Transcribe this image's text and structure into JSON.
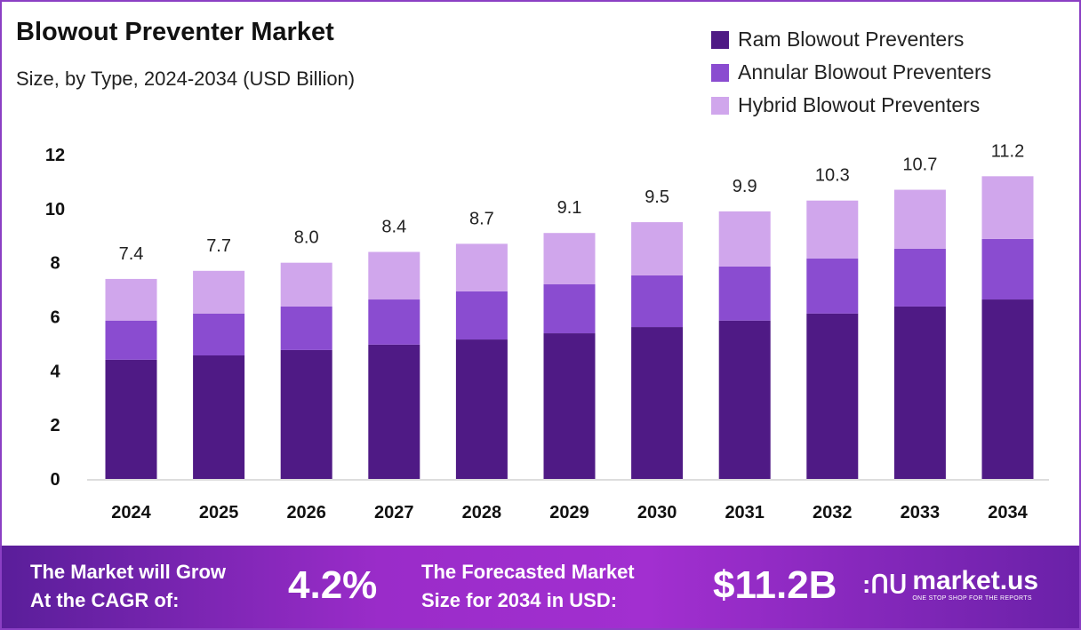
{
  "chart_data": {
    "type": "bar",
    "stacked": true,
    "title": "Blowout Preventer Market",
    "subtitle": "Size, by Type, 2024-2034 (USD Billion)",
    "categories": [
      "2024",
      "2025",
      "2026",
      "2027",
      "2028",
      "2029",
      "2030",
      "2031",
      "2032",
      "2033",
      "2034"
    ],
    "series": [
      {
        "name": "Ram Blowout Preventers",
        "color": "#4f1a85",
        "values": [
          4.41,
          4.57,
          4.77,
          4.97,
          5.16,
          5.39,
          5.62,
          5.86,
          6.12,
          6.38,
          6.64
        ]
      },
      {
        "name": "Annular Blowout Preventers",
        "color": "#8a4cd0",
        "values": [
          1.45,
          1.55,
          1.61,
          1.67,
          1.78,
          1.81,
          1.91,
          2.0,
          2.04,
          2.14,
          2.24
        ]
      },
      {
        "name": "Hybrid Blowout Preventers",
        "color": "#d0a6ec",
        "values": [
          1.54,
          1.58,
          1.62,
          1.76,
          1.76,
          1.9,
          1.97,
          2.04,
          2.14,
          2.18,
          2.32
        ]
      }
    ],
    "totals": [
      "7.4",
      "7.7",
      "8.0",
      "8.4",
      "8.7",
      "9.1",
      "9.5",
      "9.9",
      "10.3",
      "10.7",
      "11.2"
    ],
    "yticks": [
      "0",
      "2",
      "4",
      "6",
      "8",
      "10",
      "12"
    ],
    "ylim": [
      0,
      12
    ],
    "grid": false,
    "legend": "top-right"
  },
  "banner": {
    "cagr_label_line1": "The Market will Grow",
    "cagr_label_line2": "At the CAGR of:",
    "cagr_value": "4.2%",
    "forecast_label_line1": "The Forecasted Market",
    "forecast_label_line2": "Size for 2034 in USD:",
    "forecast_value": "$11.2B",
    "logo_name": "market.us",
    "logo_tagline": "ONE STOP SHOP FOR THE REPORTS"
  }
}
